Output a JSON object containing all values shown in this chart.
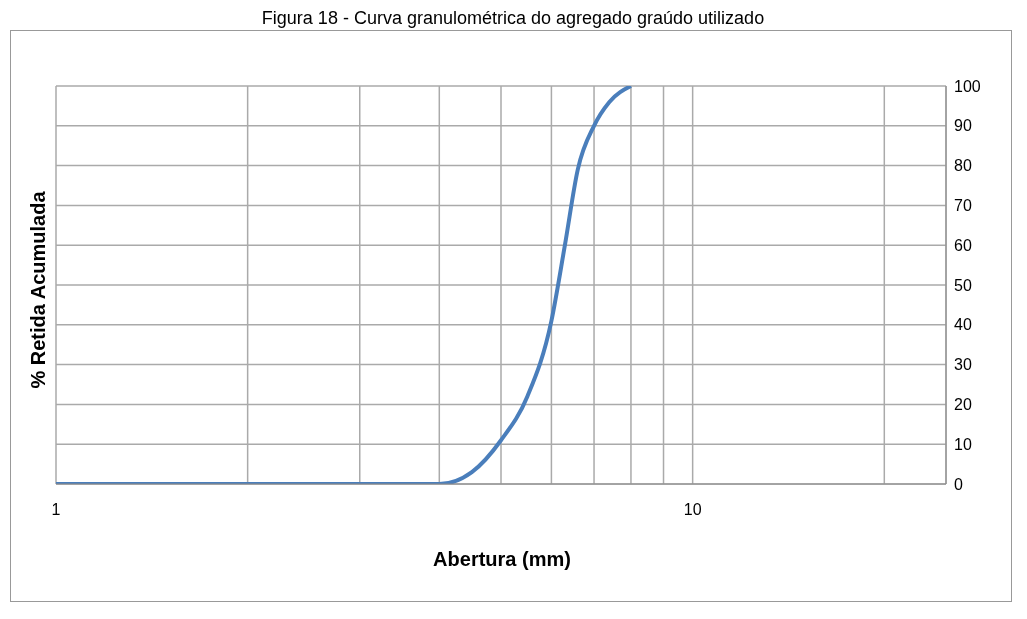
{
  "chart_data": {
    "type": "line",
    "title": "Figura 18 - Curva granulométrica do agregado graúdo utilizado",
    "xlabel": "Abertura (mm)",
    "ylabel": "% Retida Acumulada",
    "log": "x",
    "x": [
      1,
      2,
      3,
      4,
      4.5,
      5,
      5.5,
      6,
      6.3,
      6.6,
      7,
      7.4,
      8
    ],
    "series": [
      {
        "color": "#4a7ebb",
        "values": [
          0,
          0,
          0,
          0,
          3,
          11,
          22,
          41,
          60,
          79,
          90,
          96,
          100
        ]
      }
    ],
    "xlim": [
      1,
      25
    ],
    "xticks": [
      1,
      {
        "value": 2,
        "label": null
      },
      {
        "value": 3,
        "label": null
      },
      {
        "value": 4,
        "label": null
      },
      {
        "value": 5,
        "label": null
      },
      {
        "value": 6,
        "label": null
      },
      {
        "value": 7,
        "label": null
      },
      {
        "value": 8,
        "label": null
      },
      {
        "value": 9,
        "label": null
      },
      10,
      {
        "value": 20,
        "label": null
      }
    ],
    "ylim": [
      0,
      100
    ],
    "yticks": [
      0,
      10,
      20,
      30,
      40,
      50,
      60,
      70,
      80,
      90,
      100
    ],
    "grid": true,
    "legend": false,
    "marker": "none",
    "line_style": "solid"
  }
}
